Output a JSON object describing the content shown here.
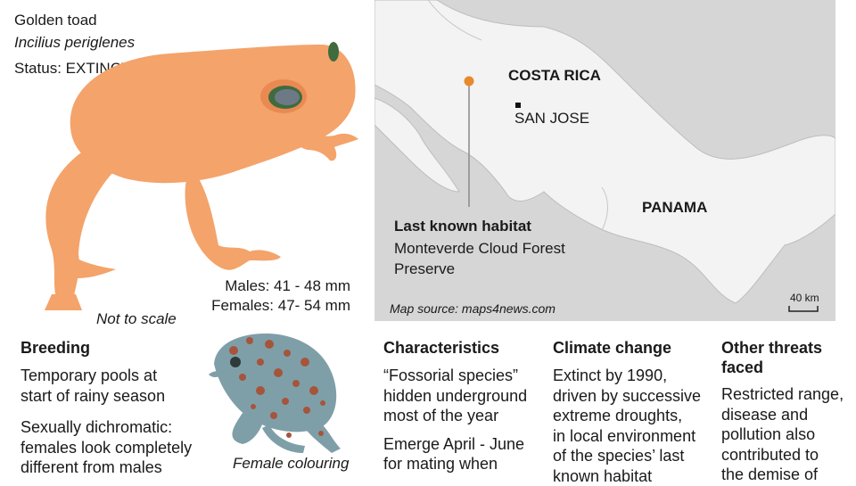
{
  "species": {
    "common_name": "Golden toad",
    "scientific_name": "Incilius periglenes",
    "status": "Status: EXTINCT"
  },
  "scale_note": "Not to scale",
  "sizes": {
    "males": "Males: 41 - 48 mm",
    "females": "Females: 47- 54 mm"
  },
  "female_caption": "Female colouring",
  "map": {
    "country_1": "COSTA RICA",
    "capital": "SAN JOSE",
    "country_2": "PANAMA",
    "habitat_title": "Last known habitat",
    "habitat_line_1": "Monteverde Cloud Forest",
    "habitat_line_2": "Preserve",
    "source": "Map source: maps4news.com",
    "scale": "40 km",
    "colors": {
      "habitat_marker": "#e8892c",
      "land": "#f3f3f3",
      "sea": "#d6d6d6"
    }
  },
  "colors": {
    "toad": "#f4a36a",
    "female_body": "#7f9fa8",
    "female_spots": "#a5553c"
  },
  "sections": {
    "breeding": {
      "title": "Breeding",
      "p1": [
        "Temporary pools at",
        "start of rainy season"
      ],
      "p2": [
        "Sexually dichromatic:",
        "females look completely",
        "different from males"
      ]
    },
    "characteristics": {
      "title": "Characteristics",
      "p1": [
        "“Fossorial species”",
        "hidden underground",
        "most of the year"
      ],
      "p2": [
        "Emerge April - June",
        "for mating when"
      ]
    },
    "climate": {
      "title": "Climate change",
      "p1": [
        "Extinct by 1990,",
        "driven by successive",
        "extreme droughts,",
        "in local environment",
        "of the species’ last",
        "known habitat"
      ]
    },
    "threats": {
      "title": [
        "Other threats",
        "faced"
      ],
      "p1": [
        "Restricted range,",
        "disease and",
        "pollution also",
        "contributed to",
        "the demise of"
      ]
    }
  }
}
